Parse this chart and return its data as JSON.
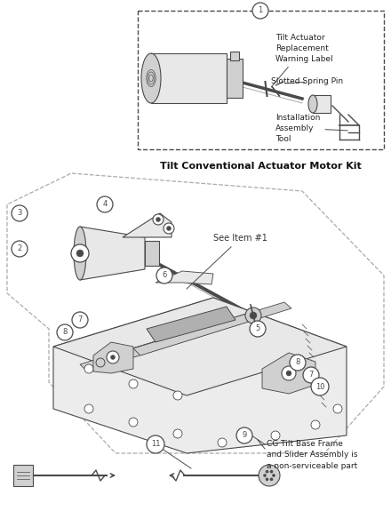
{
  "bg_color": "#ffffff",
  "line_color": "#4a4a4a",
  "dash_color": "#aaaaaa",
  "fill_light": "#e8e8e8",
  "fill_mid": "#d0d0d0",
  "fill_dark": "#b0b0b0",
  "title_kit": "Tilt Conventional Actuator Motor Kit",
  "label_warning": "Tilt Actuator\nReplacement\nWarning Label",
  "label_pin": "Slotted Spring Pin",
  "label_tool": "Installation\nAssembly\nTool",
  "label_cg": "CG Tilt Base Frame\nand Slider Assembly is\na non-serviceable part",
  "label_see": "See Item #1"
}
